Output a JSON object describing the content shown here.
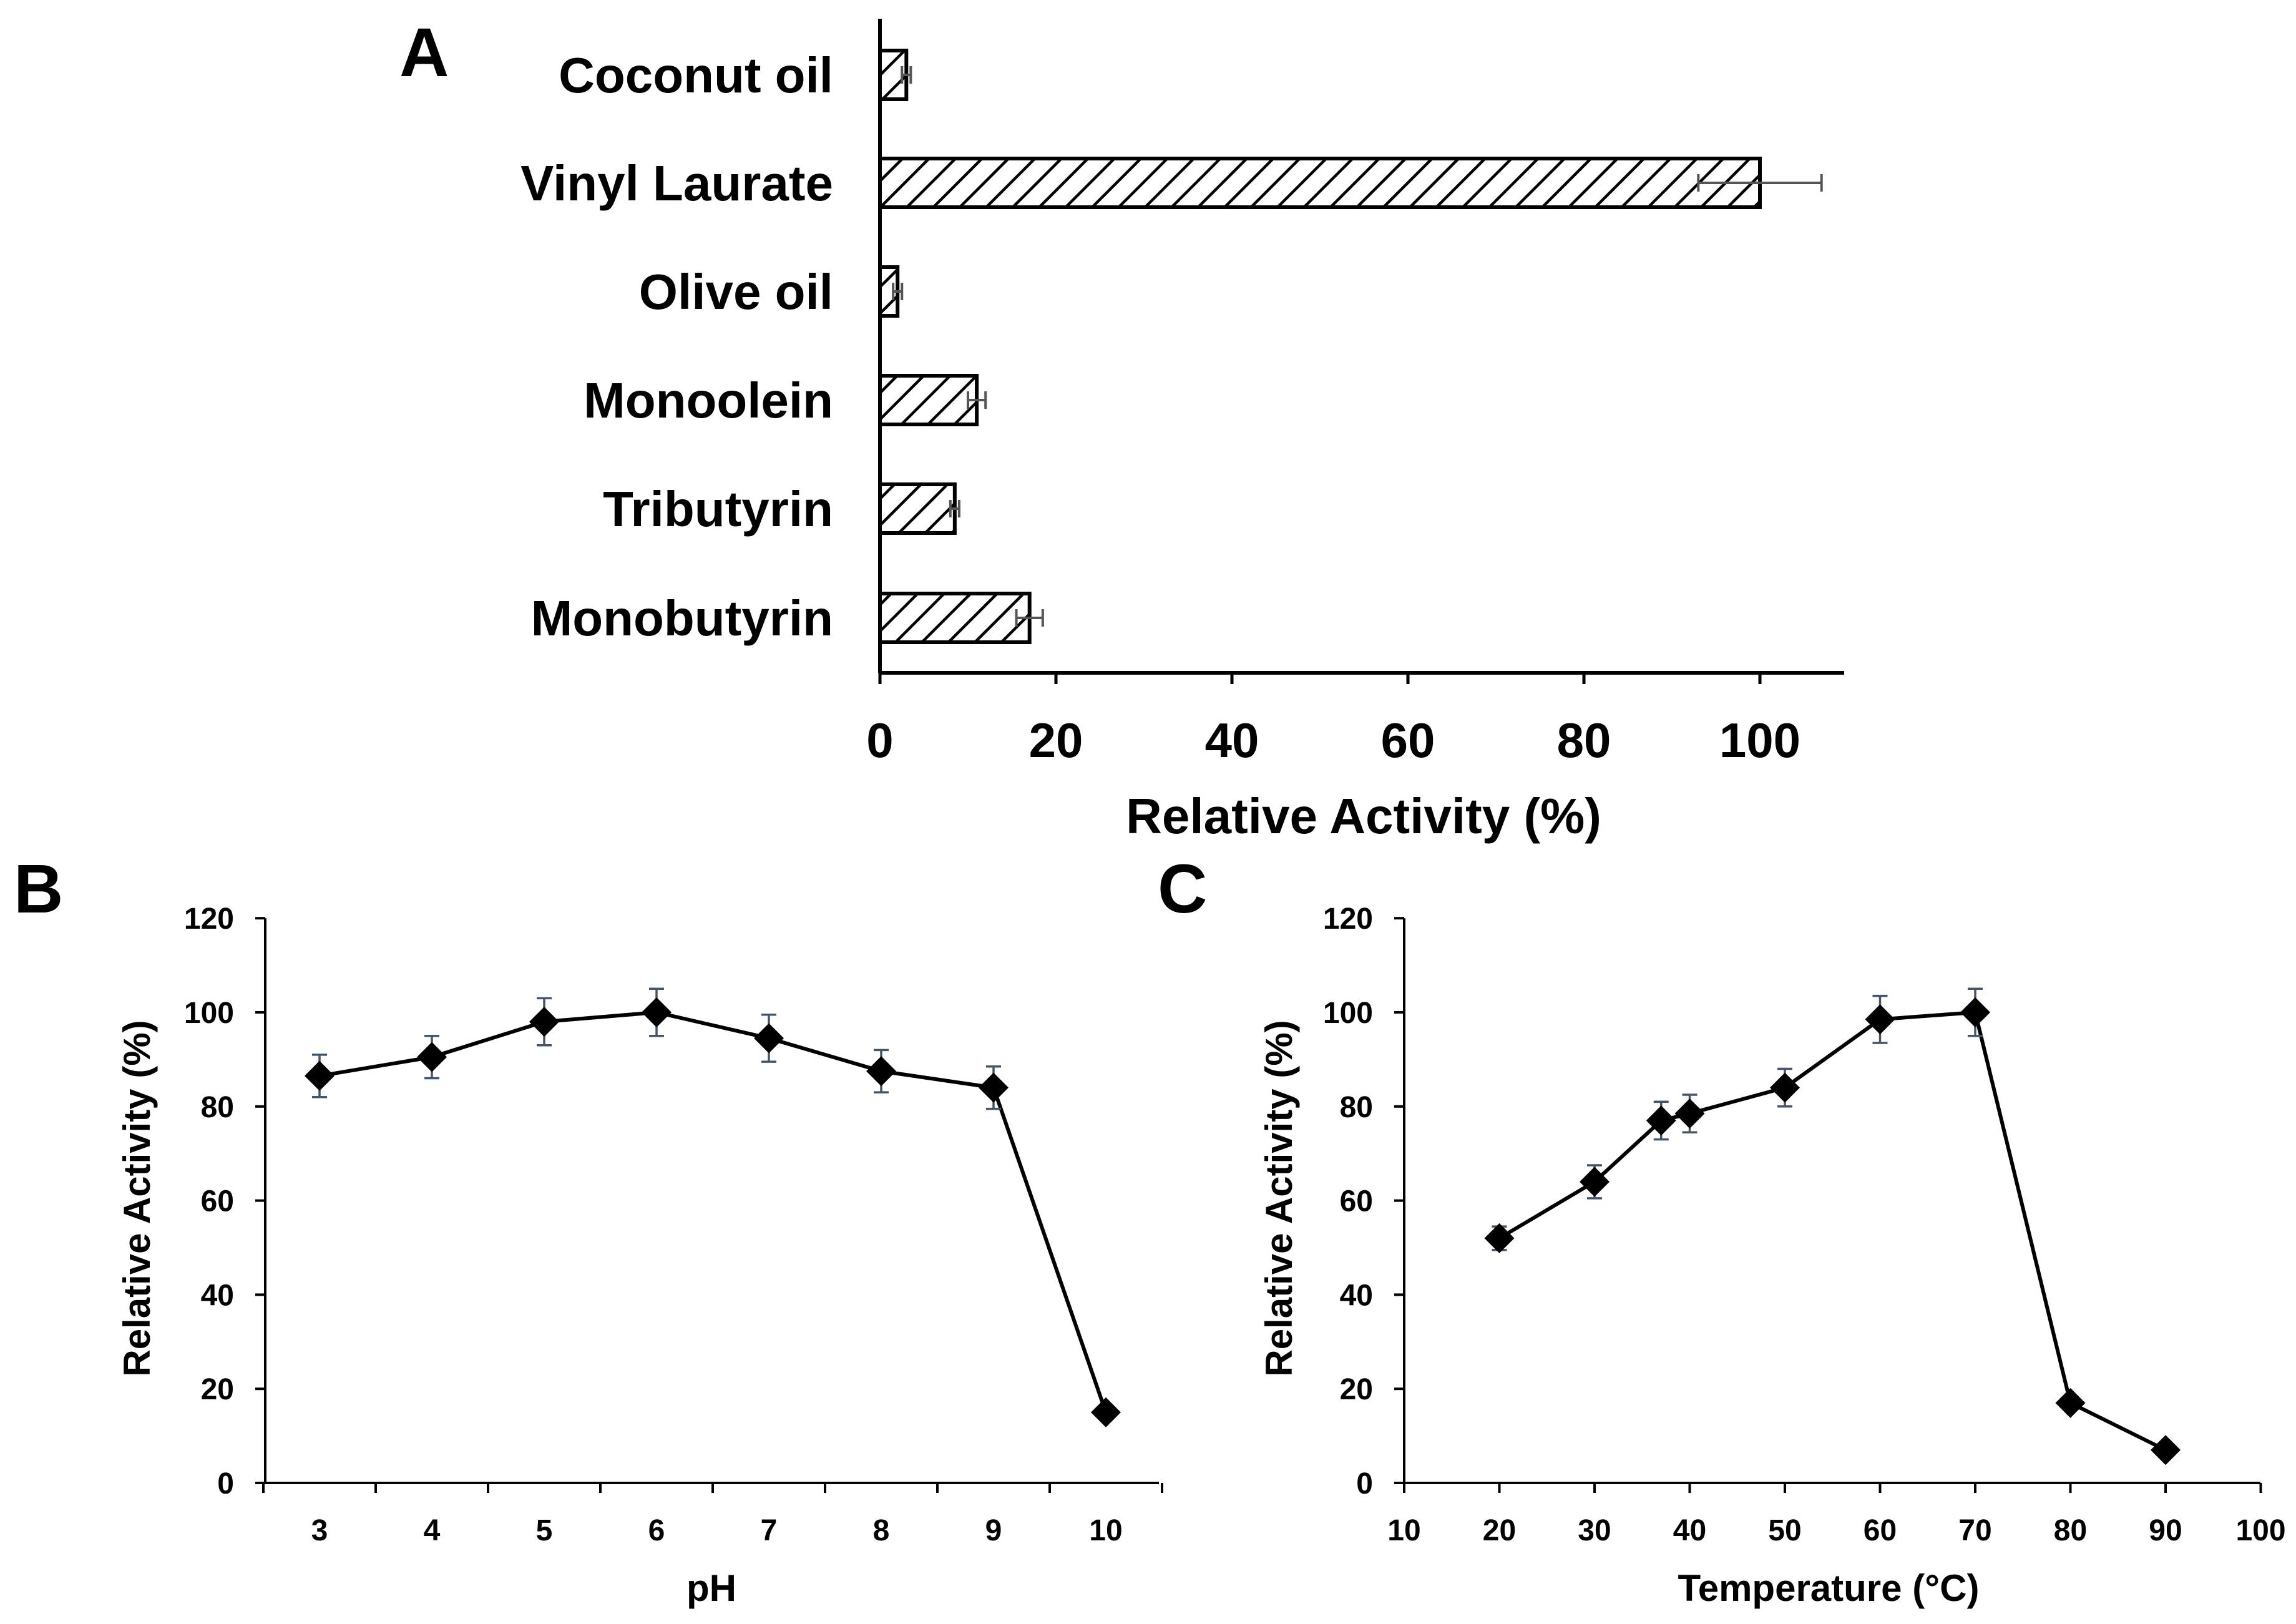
{
  "chart_data": [
    {
      "panel": "A",
      "type": "bar",
      "orientation": "horizontal",
      "title": "",
      "xlabel": "Relative Activity (%)",
      "ylabel": "",
      "xlim": [
        0,
        110
      ],
      "xticks": [
        "0",
        "20",
        "40",
        "60",
        "80",
        "100"
      ],
      "grid": false,
      "hatch": "diagonal",
      "categories": [
        "Coconut oil",
        "Vinyl Laurate",
        "Olive oil",
        "Monoolein",
        "Tributyrin",
        "Monobutyrin"
      ],
      "values": [
        3,
        100,
        2,
        11,
        8.5,
        17
      ],
      "errors": [
        0.5,
        7,
        0.5,
        1,
        0.5,
        1.5
      ]
    },
    {
      "panel": "B",
      "type": "line",
      "title": "",
      "xlabel": "pH",
      "ylabel": "Relative Activity (%)",
      "xlim": [
        2.5,
        10.5
      ],
      "ylim": [
        0,
        120
      ],
      "xticks": [
        "3",
        "4",
        "5",
        "6",
        "7",
        "8",
        "9",
        "10"
      ],
      "yticks": [
        "0",
        "20",
        "40",
        "60",
        "80",
        "100",
        "120"
      ],
      "grid": false,
      "marker": "diamond",
      "x": [
        3,
        4,
        5,
        6,
        7,
        8,
        9,
        10
      ],
      "y": [
        86.5,
        90.5,
        98,
        100,
        94.5,
        87.5,
        84,
        15
      ],
      "errors": [
        4.5,
        4.5,
        5,
        5,
        5,
        4.5,
        4.5,
        0
      ]
    },
    {
      "panel": "C",
      "type": "line",
      "title": "",
      "xlabel": "Temperature (°C)",
      "ylabel": "Relative Activity (%)",
      "xlim": [
        10,
        100
      ],
      "ylim": [
        0,
        120
      ],
      "xticks": [
        "10",
        "20",
        "30",
        "40",
        "50",
        "60",
        "70",
        "80",
        "90",
        "100"
      ],
      "yticks": [
        "0",
        "20",
        "40",
        "60",
        "80",
        "100",
        "120"
      ],
      "grid": false,
      "marker": "diamond",
      "x": [
        20,
        30,
        37,
        40,
        50,
        60,
        70,
        80,
        90
      ],
      "y": [
        52,
        64,
        77,
        78.5,
        84,
        98.5,
        100,
        17,
        7
      ],
      "errors": [
        2.5,
        3.5,
        4,
        4,
        4,
        5,
        5,
        1,
        1
      ]
    }
  ]
}
